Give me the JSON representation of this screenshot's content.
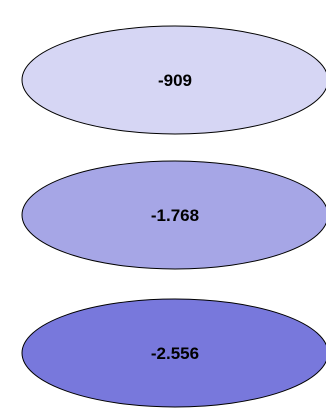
{
  "ellipses": [
    {
      "label": "-909",
      "fill": "#d6d6f4"
    },
    {
      "label": "-1.768",
      "fill": "#a6a6e6"
    },
    {
      "label": "-2.556",
      "fill": "#7878dc"
    }
  ],
  "outline_color": "#000000"
}
